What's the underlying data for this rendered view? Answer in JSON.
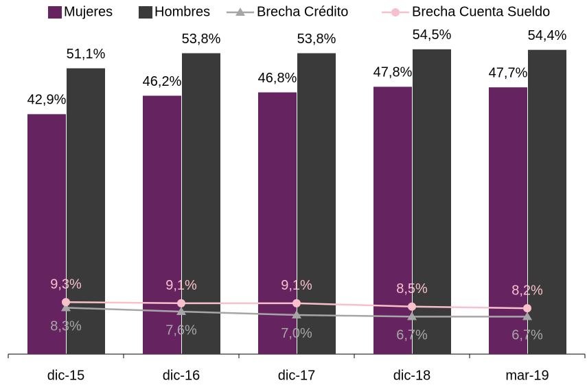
{
  "chart_data": {
    "type": "bar",
    "categories": [
      "dic-15",
      "dic-16",
      "dic-17",
      "dic-18",
      "mar-19"
    ],
    "series": [
      {
        "name": "Mujeres",
        "type": "bar",
        "color": "#652460",
        "values": [
          42.9,
          46.2,
          46.8,
          47.8,
          47.7
        ],
        "value_labels": [
          "42,9%",
          "46,2%",
          "46,8%",
          "47,8%",
          "47,7%"
        ]
      },
      {
        "name": "Hombres",
        "type": "bar",
        "color": "#3a3a3a",
        "values": [
          51.1,
          53.8,
          53.8,
          54.5,
          54.4
        ],
        "value_labels": [
          "51,1%",
          "53,8%",
          "53,8%",
          "54,5%",
          "54,4%"
        ]
      },
      {
        "name": "Brecha Crédito",
        "type": "line",
        "marker": "triangle",
        "color": "#a6a6a6",
        "values": [
          8.3,
          7.6,
          7.0,
          6.7,
          6.7
        ],
        "value_labels": [
          "8,3%",
          "7,6%",
          "7,0%",
          "6,7%",
          "6,7%"
        ]
      },
      {
        "name": "Brecha Cuenta Sueldo",
        "type": "line",
        "marker": "circle",
        "color": "#f7c0cb",
        "values": [
          9.3,
          9.1,
          9.1,
          8.5,
          8.2
        ],
        "value_labels": [
          "9,3%",
          "9,1%",
          "9,1%",
          "8,5%",
          "8,2%"
        ]
      }
    ],
    "legend": "top"
  }
}
